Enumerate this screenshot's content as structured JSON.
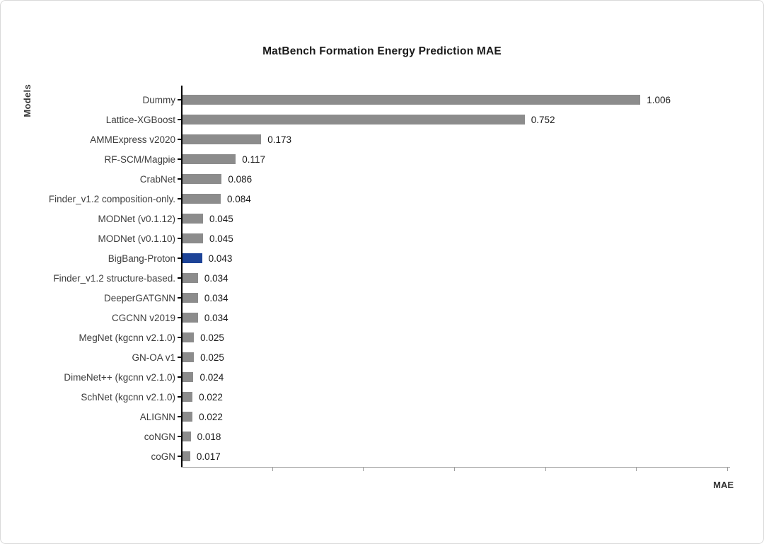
{
  "chart_data": {
    "type": "bar",
    "orientation": "horizontal",
    "title": "MatBench Formation Energy Prediction MAE",
    "xlabel": "MAE",
    "ylabel": "Models",
    "xlim": [
      0,
      1.2
    ],
    "x_ticks": [
      0.2,
      0.4,
      0.6,
      0.8,
      1.0,
      1.2
    ],
    "grid": false,
    "legend": "none",
    "bar_color": "#8c8c8c",
    "highlight_color": "#1d4397",
    "highlight_category": "BigBang-Proton",
    "categories": [
      "Dummy",
      "Lattice-XGBoost",
      "AMMExpress v2020",
      "RF-SCM/Magpie",
      "CrabNet",
      "Finder_v1.2  composition-only.",
      "MODNet (v0.1.12)",
      "MODNet (v0.1.10)",
      "BigBang-Proton",
      "Finder_v1.2 structure-based.",
      "DeeperGATGNN",
      "CGCNN v2019",
      "MegNet (kgcnn v2.1.0)",
      "GN-OA v1",
      "DimeNet++ (kgcnn v2.1.0)",
      "SchNet (kgcnn v2.1.0)",
      "ALIGNN",
      "coNGN",
      "coGN"
    ],
    "values": [
      1.006,
      0.752,
      0.173,
      0.117,
      0.086,
      0.084,
      0.045,
      0.045,
      0.043,
      0.034,
      0.034,
      0.034,
      0.025,
      0.025,
      0.024,
      0.022,
      0.022,
      0.018,
      0.017
    ]
  }
}
